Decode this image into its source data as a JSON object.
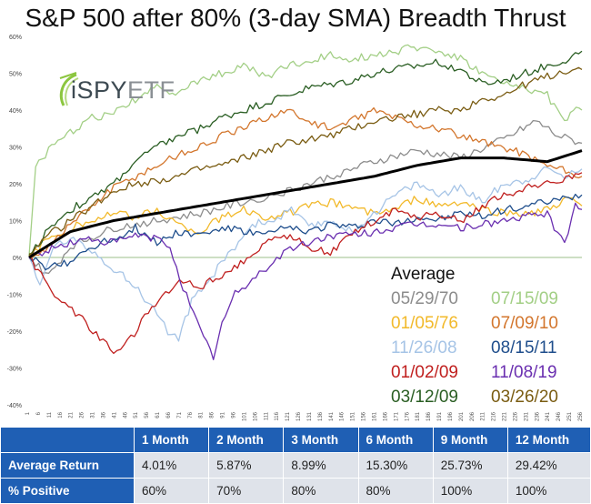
{
  "chart_data": {
    "type": "line",
    "title": "S&P 500 after 80% (3-day SMA) Breadth Thrust",
    "xlabel": "",
    "ylabel": "",
    "xlim": [
      1,
      256
    ],
    "ylim": [
      -40,
      60
    ],
    "y_tick_labels": [
      "-40%",
      "-30%",
      "-20%",
      "-10%",
      "0%",
      "10%",
      "20%",
      "30%",
      "40%",
      "50%",
      "60%"
    ],
    "x_tick_labels": [
      "1",
      "6",
      "11",
      "16",
      "21",
      "26",
      "31",
      "36",
      "41",
      "46",
      "51",
      "56",
      "61",
      "66",
      "71",
      "76",
      "81",
      "86",
      "91",
      "96",
      "101",
      "106",
      "111",
      "116",
      "121",
      "126",
      "131",
      "136",
      "141",
      "146",
      "151",
      "156",
      "161",
      "166",
      "171",
      "176",
      "181",
      "186",
      "191",
      "196",
      "201",
      "206",
      "211",
      "216",
      "221",
      "226",
      "231",
      "236",
      "241",
      "246",
      "251",
      "256"
    ],
    "legend_placement": "bottom-right",
    "legend_title": "Average",
    "series": [
      {
        "name": "Average",
        "color": "#000000",
        "width": 3,
        "points": [
          [
            1,
            0
          ],
          [
            20,
            7
          ],
          [
            40,
            10
          ],
          [
            60,
            12
          ],
          [
            80,
            14
          ],
          [
            100,
            16
          ],
          [
            120,
            18
          ],
          [
            140,
            20
          ],
          [
            160,
            22
          ],
          [
            180,
            25
          ],
          [
            200,
            27
          ],
          [
            220,
            27
          ],
          [
            240,
            26
          ],
          [
            256,
            29
          ]
        ]
      },
      {
        "name": "05/29/70",
        "color": "#8c8c8c",
        "width": 1.3,
        "points": [
          [
            1,
            0
          ],
          [
            10,
            -5
          ],
          [
            20,
            3
          ],
          [
            40,
            8
          ],
          [
            60,
            10
          ],
          [
            80,
            12
          ],
          [
            100,
            15
          ],
          [
            120,
            18
          ],
          [
            140,
            22
          ],
          [
            160,
            26
          ],
          [
            180,
            29
          ],
          [
            200,
            27
          ],
          [
            220,
            32
          ],
          [
            235,
            37
          ],
          [
            245,
            33
          ],
          [
            256,
            31
          ]
        ]
      },
      {
        "name": "07/15/09",
        "color": "#a3cf86",
        "width": 1.3,
        "points": [
          [
            1,
            0
          ],
          [
            4,
            25
          ],
          [
            10,
            29
          ],
          [
            20,
            34
          ],
          [
            30,
            38
          ],
          [
            40,
            39
          ],
          [
            50,
            43
          ],
          [
            60,
            46
          ],
          [
            70,
            45
          ],
          [
            80,
            48
          ],
          [
            90,
            50
          ],
          [
            100,
            52
          ],
          [
            110,
            49
          ],
          [
            120,
            52
          ],
          [
            130,
            53
          ],
          [
            140,
            55
          ],
          [
            150,
            54
          ],
          [
            160,
            55
          ],
          [
            170,
            56
          ],
          [
            180,
            57
          ],
          [
            190,
            56
          ],
          [
            200,
            54
          ],
          [
            210,
            50
          ],
          [
            220,
            47
          ],
          [
            230,
            46
          ],
          [
            240,
            44
          ],
          [
            248,
            37
          ],
          [
            252,
            40
          ],
          [
            256,
            40
          ]
        ]
      },
      {
        "name": "01/05/76",
        "color": "#f2b92a",
        "width": 1.3,
        "points": [
          [
            1,
            0
          ],
          [
            10,
            5
          ],
          [
            20,
            8
          ],
          [
            30,
            10
          ],
          [
            40,
            12
          ],
          [
            50,
            11
          ],
          [
            60,
            13
          ],
          [
            70,
            9
          ],
          [
            80,
            7
          ],
          [
            90,
            11
          ],
          [
            100,
            13
          ],
          [
            110,
            11
          ],
          [
            120,
            12
          ],
          [
            130,
            14
          ],
          [
            140,
            15
          ],
          [
            150,
            14
          ],
          [
            160,
            12
          ],
          [
            170,
            13
          ],
          [
            180,
            16
          ],
          [
            190,
            14
          ],
          [
            200,
            15
          ],
          [
            210,
            13
          ],
          [
            220,
            12
          ],
          [
            230,
            12
          ],
          [
            240,
            13
          ],
          [
            250,
            16
          ],
          [
            256,
            14
          ]
        ]
      },
      {
        "name": "07/09/10",
        "color": "#d3762d",
        "width": 1.3,
        "points": [
          [
            1,
            0
          ],
          [
            10,
            3
          ],
          [
            20,
            9
          ],
          [
            30,
            14
          ],
          [
            40,
            19
          ],
          [
            50,
            22
          ],
          [
            60,
            25
          ],
          [
            70,
            28
          ],
          [
            80,
            30
          ],
          [
            90,
            33
          ],
          [
            100,
            35
          ],
          [
            110,
            38
          ],
          [
            120,
            40
          ],
          [
            130,
            37
          ],
          [
            140,
            35
          ],
          [
            150,
            37
          ],
          [
            160,
            40
          ],
          [
            170,
            38
          ],
          [
            180,
            36
          ],
          [
            190,
            35
          ],
          [
            200,
            33
          ],
          [
            210,
            31
          ],
          [
            220,
            30
          ],
          [
            230,
            28
          ],
          [
            240,
            25
          ],
          [
            250,
            23
          ],
          [
            256,
            22
          ]
        ]
      },
      {
        "name": "11/26/08",
        "color": "#a6c4e6",
        "width": 1.3,
        "points": [
          [
            1,
            0
          ],
          [
            6,
            -8
          ],
          [
            12,
            3
          ],
          [
            20,
            5
          ],
          [
            30,
            2
          ],
          [
            40,
            -3
          ],
          [
            50,
            -8
          ],
          [
            60,
            -15
          ],
          [
            65,
            -20
          ],
          [
            70,
            -22
          ],
          [
            76,
            -12
          ],
          [
            82,
            -8
          ],
          [
            88,
            -3
          ],
          [
            96,
            3
          ],
          [
            104,
            9
          ],
          [
            114,
            10
          ],
          [
            122,
            13
          ],
          [
            130,
            8
          ],
          [
            140,
            10
          ],
          [
            150,
            7
          ],
          [
            160,
            12
          ],
          [
            170,
            17
          ],
          [
            180,
            20
          ],
          [
            190,
            17
          ],
          [
            200,
            19
          ],
          [
            210,
            15
          ],
          [
            220,
            20
          ],
          [
            230,
            21
          ],
          [
            240,
            24
          ],
          [
            248,
            22
          ],
          [
            256,
            24
          ]
        ]
      },
      {
        "name": "08/15/11",
        "color": "#1f4e8c",
        "width": 1.3,
        "points": [
          [
            1,
            0
          ],
          [
            10,
            -3
          ],
          [
            20,
            -1
          ],
          [
            30,
            3
          ],
          [
            40,
            5
          ],
          [
            50,
            8
          ],
          [
            60,
            4
          ],
          [
            70,
            7
          ],
          [
            80,
            6
          ],
          [
            90,
            8
          ],
          [
            100,
            7
          ],
          [
            110,
            6
          ],
          [
            120,
            8
          ],
          [
            130,
            7
          ],
          [
            140,
            9
          ],
          [
            150,
            8
          ],
          [
            160,
            10
          ],
          [
            170,
            9
          ],
          [
            180,
            11
          ],
          [
            190,
            10
          ],
          [
            200,
            12
          ],
          [
            210,
            11
          ],
          [
            220,
            13
          ],
          [
            230,
            14
          ],
          [
            240,
            15
          ],
          [
            250,
            16
          ],
          [
            256,
            17
          ]
        ]
      },
      {
        "name": "01/02/09",
        "color": "#c0201f",
        "width": 1.3,
        "points": [
          [
            1,
            0
          ],
          [
            8,
            -6
          ],
          [
            16,
            -12
          ],
          [
            24,
            -16
          ],
          [
            32,
            -21
          ],
          [
            40,
            -26
          ],
          [
            48,
            -22
          ],
          [
            56,
            -15
          ],
          [
            64,
            -10
          ],
          [
            72,
            -6
          ],
          [
            80,
            -8
          ],
          [
            90,
            -5
          ],
          [
            100,
            -1
          ],
          [
            110,
            4
          ],
          [
            120,
            6
          ],
          [
            130,
            3
          ],
          [
            140,
            1
          ],
          [
            150,
            7
          ],
          [
            160,
            10
          ],
          [
            170,
            13
          ],
          [
            180,
            11
          ],
          [
            190,
            12
          ],
          [
            200,
            10
          ],
          [
            210,
            14
          ],
          [
            220,
            17
          ],
          [
            230,
            19
          ],
          [
            240,
            20
          ],
          [
            250,
            22
          ],
          [
            256,
            23
          ]
        ]
      },
      {
        "name": "11/08/19",
        "color": "#6a2fb0",
        "width": 1.3,
        "points": [
          [
            1,
            0
          ],
          [
            10,
            2
          ],
          [
            20,
            4
          ],
          [
            30,
            5
          ],
          [
            40,
            4
          ],
          [
            50,
            6
          ],
          [
            60,
            5
          ],
          [
            66,
            3
          ],
          [
            72,
            -8
          ],
          [
            80,
            -20
          ],
          [
            86,
            -27
          ],
          [
            90,
            -18
          ],
          [
            96,
            -10
          ],
          [
            104,
            -6
          ],
          [
            112,
            -2
          ],
          [
            120,
            2
          ],
          [
            130,
            4
          ],
          [
            140,
            6
          ],
          [
            150,
            6
          ],
          [
            160,
            7
          ],
          [
            170,
            8
          ],
          [
            180,
            9
          ],
          [
            190,
            9
          ],
          [
            200,
            8
          ],
          [
            210,
            9
          ],
          [
            220,
            10
          ],
          [
            230,
            11
          ],
          [
            240,
            12
          ],
          [
            248,
            3
          ],
          [
            253,
            15
          ],
          [
            256,
            13
          ]
        ]
      },
      {
        "name": "03/12/09",
        "color": "#2a5e23",
        "width": 1.3,
        "points": [
          [
            1,
            0
          ],
          [
            10,
            8
          ],
          [
            20,
            13
          ],
          [
            30,
            16
          ],
          [
            40,
            20
          ],
          [
            50,
            26
          ],
          [
            60,
            30
          ],
          [
            70,
            33
          ],
          [
            80,
            35
          ],
          [
            90,
            38
          ],
          [
            100,
            40
          ],
          [
            110,
            42
          ],
          [
            120,
            44
          ],
          [
            130,
            46
          ],
          [
            140,
            47
          ],
          [
            150,
            48
          ],
          [
            160,
            50
          ],
          [
            170,
            51
          ],
          [
            180,
            52
          ],
          [
            190,
            53
          ],
          [
            200,
            51
          ],
          [
            210,
            47
          ],
          [
            220,
            48
          ],
          [
            230,
            50
          ],
          [
            240,
            52
          ],
          [
            250,
            54
          ],
          [
            256,
            56
          ]
        ]
      },
      {
        "name": "03/26/20",
        "color": "#7a5c12",
        "width": 1.3,
        "points": [
          [
            1,
            0
          ],
          [
            10,
            6
          ],
          [
            20,
            10
          ],
          [
            30,
            14
          ],
          [
            40,
            18
          ],
          [
            50,
            20
          ],
          [
            60,
            21
          ],
          [
            70,
            22
          ],
          [
            80,
            24
          ],
          [
            90,
            25
          ],
          [
            100,
            27
          ],
          [
            110,
            29
          ],
          [
            120,
            31
          ],
          [
            130,
            32
          ],
          [
            140,
            33
          ],
          [
            150,
            35
          ],
          [
            160,
            37
          ],
          [
            170,
            38
          ],
          [
            180,
            39
          ],
          [
            190,
            40
          ],
          [
            200,
            40
          ],
          [
            210,
            43
          ],
          [
            220,
            44
          ],
          [
            230,
            47
          ],
          [
            240,
            49
          ],
          [
            250,
            51
          ],
          [
            256,
            51
          ]
        ]
      }
    ],
    "table": {
      "headers": [
        "",
        "1 Month",
        "2 Month",
        "3 Month",
        "6 Month",
        "9 Month",
        "12 Month"
      ],
      "rows": [
        [
          "Average Return",
          "4.01%",
          "5.87%",
          "8.99%",
          "15.30%",
          "25.73%",
          "29.42%"
        ],
        [
          "% Positive",
          "60%",
          "70%",
          "80%",
          "80%",
          "100%",
          "100%"
        ]
      ]
    }
  },
  "logo": {
    "brand": "iSPY",
    "suffix": "ETF",
    "icon": "spyglass-swoosh-icon"
  }
}
